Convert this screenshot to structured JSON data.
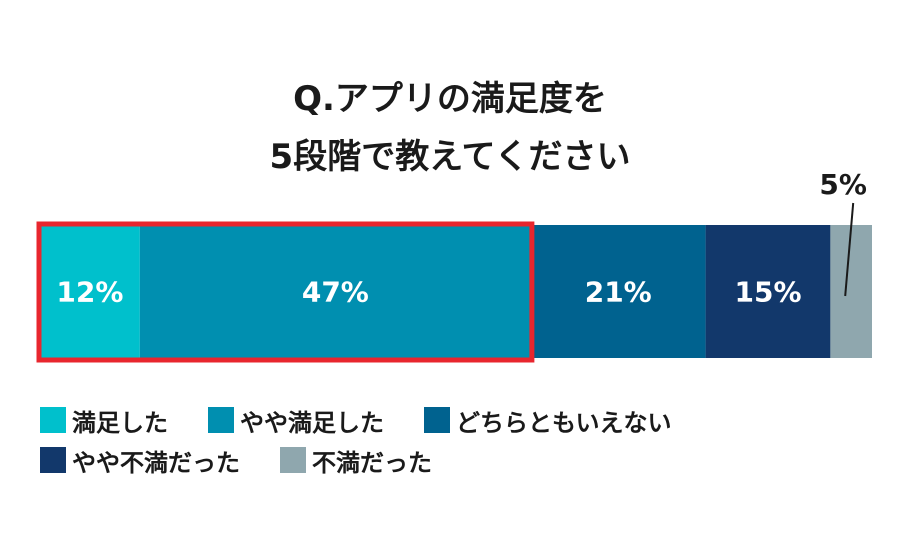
{
  "chart_data": {
    "type": "bar",
    "orientation": "horizontal-stacked-100",
    "title": [
      "Q.アプリの満足度を",
      "5段階で教えてください"
    ],
    "series": [
      {
        "name": "満足した",
        "value": 12,
        "label": "12%",
        "color": "#00c0cc"
      },
      {
        "name": "やや満足した",
        "value": 47,
        "label": "47%",
        "color": "#008fb0"
      },
      {
        "name": "どちらともいえない",
        "value": 21,
        "label": "21%",
        "color": "#00628f"
      },
      {
        "name": "やや不満だった",
        "value": 15,
        "label": "15%",
        "color": "#12386b"
      },
      {
        "name": "不満だった",
        "value": 5,
        "label": "5%",
        "color": "#8fa7ae"
      }
    ],
    "highlight": {
      "series": [
        "満足した",
        "やや満足した"
      ],
      "color": "#e8262e"
    },
    "legend_position": "bottom",
    "grid": false
  }
}
